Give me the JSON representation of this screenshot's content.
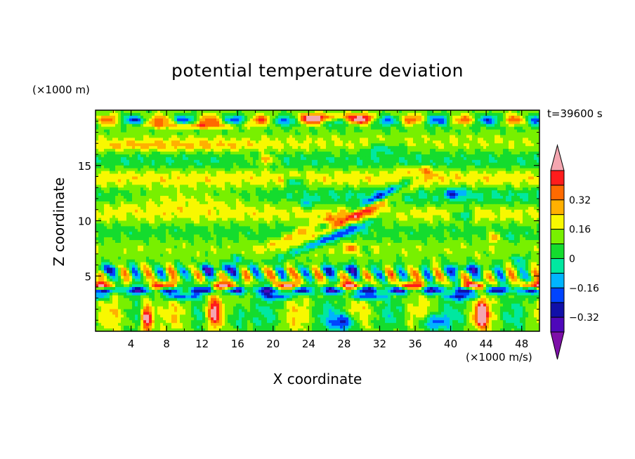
{
  "chart_data": {
    "type": "heatmap",
    "title": "potential temperature deviation",
    "xlabel": "X coordinate",
    "ylabel": "Z coordinate",
    "x_unit": "(×1000 m/s)",
    "y_unit": "(×1000 m)",
    "annotation": "t=39600 s",
    "xlim": [
      0,
      50
    ],
    "ylim": [
      0,
      20
    ],
    "x_ticks": [
      "4",
      "8",
      "12",
      "16",
      "20",
      "24",
      "28",
      "32",
      "36",
      "40",
      "44",
      "48"
    ],
    "y_ticks": [
      "5",
      "10",
      "15"
    ],
    "colorbar": {
      "levels": [
        -0.48,
        -0.4,
        -0.32,
        -0.24,
        -0.16,
        -0.08,
        0,
        0.08,
        0.16,
        0.24,
        0.32,
        0.4
      ],
      "labels": [
        "0.32",
        "0.16",
        "0",
        "−0.16",
        "−0.32"
      ],
      "colors": [
        "#7d0fa8",
        "#4e08ba",
        "#1010a8",
        "#0044ff",
        "#00b4ff",
        "#00e8a0",
        "#14dc2e",
        "#78f000",
        "#f8f800",
        "#ffb000",
        "#ff6a00",
        "#ff1c1c",
        "#f4a6b0"
      ],
      "extend": "both"
    },
    "legend": "right"
  }
}
